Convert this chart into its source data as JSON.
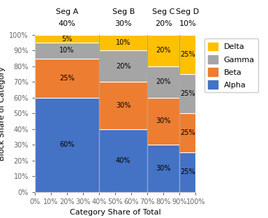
{
  "segments": [
    "Seg A",
    "Seg B",
    "Seg C",
    "Seg D"
  ],
  "seg_shares": [
    0.4,
    0.3,
    0.2,
    0.1
  ],
  "categories": [
    "Alpha",
    "Beta",
    "Gamma",
    "Delta"
  ],
  "colors": [
    "#4472C4",
    "#ED7D31",
    "#A5A5A5",
    "#FFC000"
  ],
  "values": [
    [
      0.6,
      0.4,
      0.3,
      0.25
    ],
    [
      0.25,
      0.3,
      0.3,
      0.25
    ],
    [
      0.1,
      0.2,
      0.2,
      0.25
    ],
    [
      0.05,
      0.1,
      0.2,
      0.25
    ]
  ],
  "xlabel": "Category Share of Total",
  "ylabel": "Block Share of Category",
  "legend_labels": [
    "Delta",
    "Gamma",
    "Beta",
    "Alpha"
  ],
  "legend_colors": [
    "#FFC000",
    "#A5A5A5",
    "#ED7D31",
    "#4472C4"
  ],
  "seg_label_fontsize": 8,
  "tick_fontsize": 7,
  "axis_label_fontsize": 8,
  "legend_fontsize": 8,
  "bar_label_fontsize": 7,
  "bar_edge_color": "white",
  "bar_edge_linewidth": 0.8,
  "vline_color": "#A0A0A0",
  "vline_linewidth": 0.8,
  "grid_color": "#D3D3D3",
  "spine_color": "#D3D3D3"
}
